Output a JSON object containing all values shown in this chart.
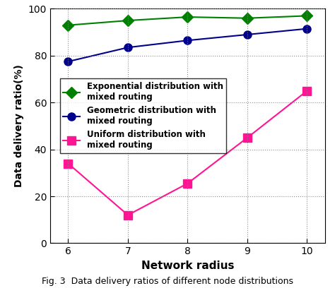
{
  "x": [
    6,
    7,
    8,
    9,
    10
  ],
  "exponential": [
    93,
    95,
    96.5,
    96,
    97
  ],
  "geometric": [
    77.5,
    83.5,
    86.5,
    89,
    91.5
  ],
  "uniform": [
    34,
    12,
    25.5,
    45,
    65
  ],
  "exp_color": "#008000",
  "geo_color": "#00008B",
  "uni_color": "#FF1493",
  "xlabel": "Network radius",
  "ylabel": "Data delivery ratio(%)",
  "ylim": [
    0,
    100
  ],
  "xlim": [
    5.7,
    10.3
  ],
  "yticks": [
    0,
    20,
    40,
    60,
    80,
    100
  ],
  "xticks": [
    6,
    7,
    8,
    9,
    10
  ],
  "legend_exp": "Exponential distribution with\nmixed routing",
  "legend_geo": "Geometric distribution with\nmixed routing",
  "legend_uni": "Uniform distribution with\nmixed routing",
  "caption": "Fig. 3  Data delivery ratios of different node distributions"
}
